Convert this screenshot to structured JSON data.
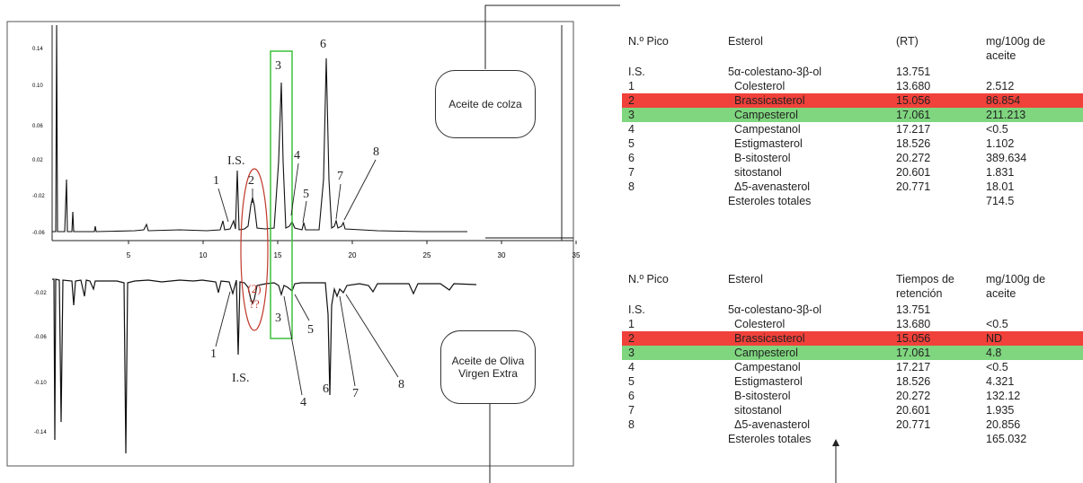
{
  "chart_data": {
    "type": "line",
    "x_ticks": [
      "5",
      "10",
      "15",
      "20",
      "25",
      "30",
      "35"
    ],
    "y_ticks_top": [
      "0.14",
      "0.10",
      "0.06",
      "0.02",
      "-0.02",
      "-0.06"
    ],
    "y_ticks_bottom": [
      "-0.02",
      "-0.06",
      "-0.10",
      "-0.14"
    ],
    "series": [
      {
        "name": "Aceite de colza"
      },
      {
        "name": "Aceite de Oliva Virgen Extra"
      }
    ],
    "peak_labels_top": [
      "I.S.",
      "1",
      "2",
      "3",
      "4",
      "5",
      "6",
      "7",
      "8"
    ],
    "peak_labels_bottom": [
      "1",
      "I.S.",
      "3",
      "4",
      "5",
      "6",
      "7",
      "8"
    ],
    "annotation": "(2)\n??",
    "x_range": [
      0,
      37
    ]
  },
  "label_colza": "Aceite de colza",
  "label_oliva": "Aceite de Oliva Virgen Extra",
  "tables": [
    {
      "headers": [
        "N.º Pico",
        "Esterol",
        "(RT)",
        "mg/100g de aceite"
      ],
      "rows": [
        [
          "I.S.",
          "5α-colestano-3β-ol",
          "13.751",
          ""
        ],
        [
          "1",
          "Colesterol",
          "13.680",
          "2.512"
        ],
        [
          "2",
          "Brassicasterol",
          "15.056",
          "86.854"
        ],
        [
          "3",
          "Campesterol",
          "17.061",
          "211.213"
        ],
        [
          "4",
          "Campestanol",
          "17.217",
          "<0.5"
        ],
        [
          "5",
          "Estigmasterol",
          "18.526",
          "1.102"
        ],
        [
          "6",
          "B-sitosterol",
          "20.272",
          "389.634"
        ],
        [
          "7",
          "sitostanol",
          "20.601",
          "1.831"
        ],
        [
          "8",
          "Δ5-avenasterol",
          "20.771",
          "18.01"
        ],
        [
          "",
          "Esteroles totales",
          "",
          "714.5"
        ]
      ]
    },
    {
      "headers": [
        "N.º Pico",
        "Esterol",
        "Tiempos de retención",
        "mg/100g de aceite"
      ],
      "rows": [
        [
          "I.S.",
          "5α-colestano-3β-ol",
          "13.751",
          ""
        ],
        [
          "1",
          "Colesterol",
          "13.680",
          "<0.5"
        ],
        [
          "2",
          "Brassicasterol",
          "15.056",
          "ND"
        ],
        [
          "3",
          "Campesterol",
          "17.061",
          "4.8"
        ],
        [
          "4",
          "Campestanol",
          "17.217",
          "<0.5"
        ],
        [
          "5",
          "Estigmasterol",
          "18.526",
          "4.321"
        ],
        [
          "6",
          "B-sitosterol",
          "20.272",
          "132.12"
        ],
        [
          "7",
          "sitostanol",
          "20.601",
          "1.935"
        ],
        [
          "8",
          "Δ5-avenasterol",
          "20.771",
          "20.856"
        ],
        [
          "",
          "Esteroles totales",
          "",
          "165.032"
        ]
      ]
    }
  ],
  "colors": {
    "red_highlight": "#f0413a",
    "green_highlight": "#7fd67f",
    "green_box": "#3cc03c",
    "red_ellipse": "#c0392b"
  }
}
